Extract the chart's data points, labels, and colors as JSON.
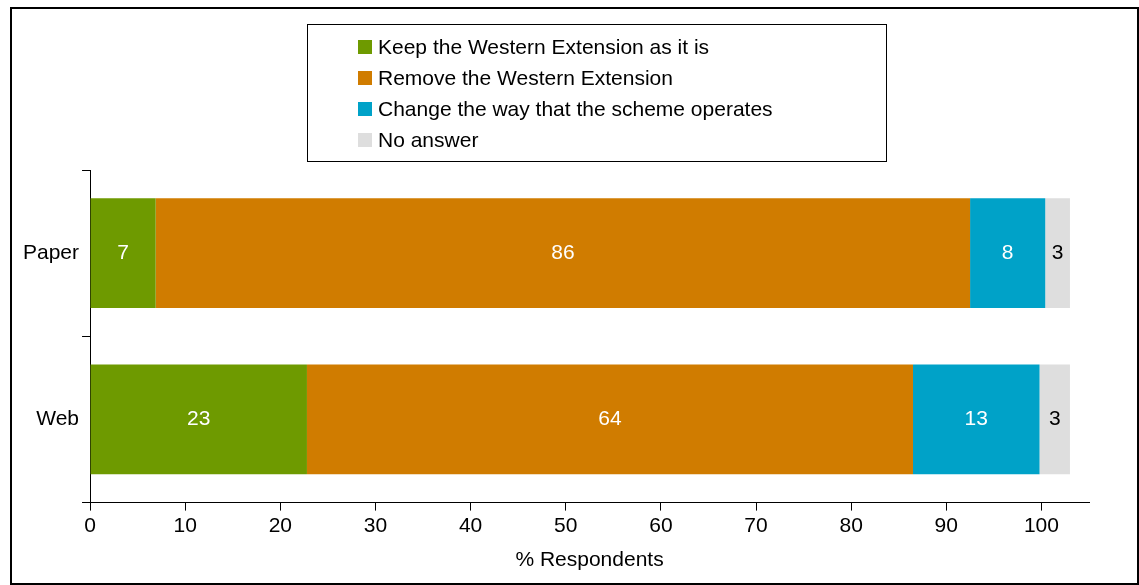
{
  "chart_data": {
    "type": "bar",
    "orientation": "horizontal",
    "stacked": true,
    "xlabel": "% Respondents",
    "categories": [
      "Paper",
      "Web"
    ],
    "series": [
      {
        "name": "Keep the Western Extension as it is",
        "color": "#6e9a00",
        "values": [
          6.9,
          22.8
        ],
        "value_labels": [
          "7",
          "23"
        ]
      },
      {
        "name": "Remove the Western Extension",
        "color": "#d07c00",
        "values": [
          85.6,
          63.7
        ],
        "value_labels": [
          "86",
          "64"
        ]
      },
      {
        "name": "Change the way that the scheme operates",
        "color": "#00a2c8",
        "values": [
          7.9,
          13.3
        ],
        "value_labels": [
          "8",
          "13"
        ]
      },
      {
        "name": "No answer",
        "color": "#dedede",
        "values": [
          2.6,
          3.2
        ],
        "value_labels": [
          "3",
          "3"
        ]
      }
    ],
    "xlim": [
      0,
      105
    ],
    "xticks": [
      0,
      10,
      20,
      30,
      40,
      50,
      60,
      70,
      80,
      90,
      100
    ],
    "grid": false,
    "legend": "top"
  }
}
